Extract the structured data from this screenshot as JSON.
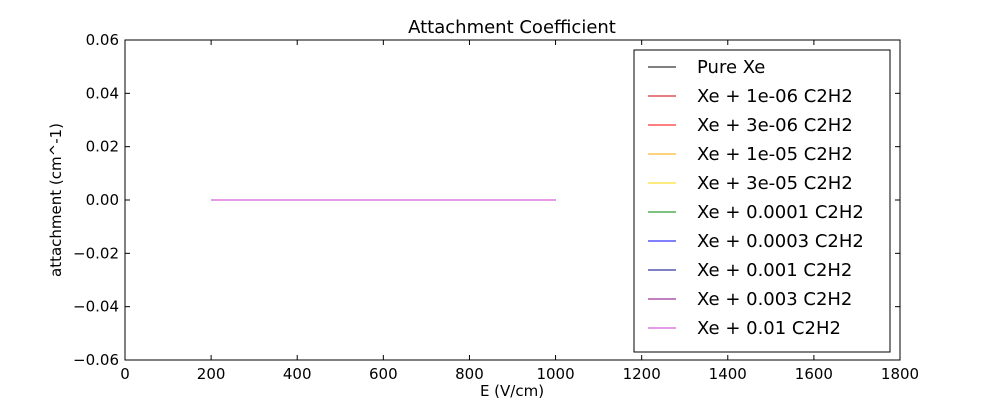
{
  "chart_data": {
    "type": "line",
    "title": "Attachment Coefficient",
    "xlabel": "E (V/cm)",
    "ylabel": "attachment (cm^-1)",
    "xlim": [
      0,
      1800
    ],
    "ylim": [
      -0.06,
      0.06
    ],
    "xticks": [
      0,
      200,
      400,
      600,
      800,
      1000,
      1200,
      1400,
      1600,
      1800
    ],
    "xtick_labels": [
      "0",
      "200",
      "400",
      "600",
      "800",
      "1000",
      "1200",
      "1400",
      "1600",
      "1800"
    ],
    "yticks": [
      -0.06,
      -0.04,
      -0.02,
      0.0,
      0.02,
      0.04,
      0.06
    ],
    "ytick_labels": [
      "−0.06",
      "−0.04",
      "−0.02",
      "0.00",
      "0.02",
      "0.04",
      "0.06"
    ],
    "grid": false,
    "legend_position": "top-right",
    "series": [
      {
        "name": "Pure Xe",
        "color": "#000000",
        "x": [
          200,
          1000
        ],
        "y": [
          0,
          0
        ]
      },
      {
        "name": "Xe + 1e-06 C2H2",
        "color": "#cc0000",
        "x": [
          200,
          1000
        ],
        "y": [
          0,
          0
        ]
      },
      {
        "name": "Xe + 3e-06 C2H2",
        "color": "#ff0000",
        "x": [
          200,
          1000
        ],
        "y": [
          0,
          0
        ]
      },
      {
        "name": "Xe + 1e-05 C2H2",
        "color": "#ffa500",
        "x": [
          200,
          1000
        ],
        "y": [
          0,
          0
        ]
      },
      {
        "name": "Xe + 3e-05 C2H2",
        "color": "#ffd700",
        "x": [
          200,
          1000
        ],
        "y": [
          0,
          0
        ]
      },
      {
        "name": "Xe + 0.0001 C2H2",
        "color": "#008000",
        "x": [
          200,
          1000
        ],
        "y": [
          0,
          0
        ]
      },
      {
        "name": "Xe + 0.0003 C2H2",
        "color": "#0000ff",
        "x": [
          200,
          1000
        ],
        "y": [
          0,
          0
        ]
      },
      {
        "name": "Xe + 0.001 C2H2",
        "color": "#00008b",
        "x": [
          200,
          1000
        ],
        "y": [
          0,
          0
        ]
      },
      {
        "name": "Xe + 0.003 C2H2",
        "color": "#800080",
        "x": [
          200,
          1000
        ],
        "y": [
          0,
          0
        ]
      },
      {
        "name": "Xe + 0.01 C2H2",
        "color": "#cc33cc",
        "x": [
          200,
          1000
        ],
        "y": [
          0,
          0
        ]
      }
    ]
  }
}
